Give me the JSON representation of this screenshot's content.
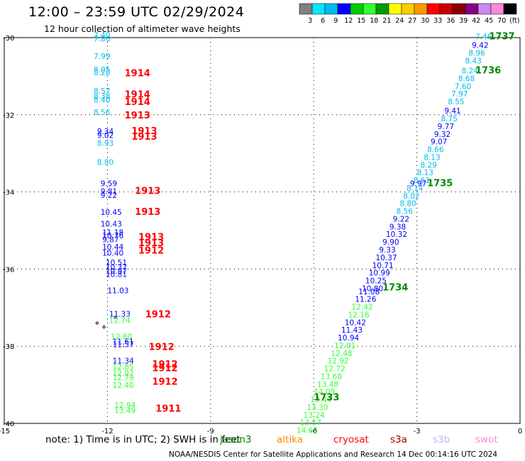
{
  "title": "12:00 – 23:59 UTC 02/29/2024",
  "subtitle": "12 hour collection of altimeter wave heights",
  "note": "note:  1) Time is in UTC; 2) SWH is in feet",
  "credit": "NOAA/NESDIS Center for Satellite Applications and Research    14 Dec 00:14:16 UTC 2024",
  "satellites": [
    {
      "name": "jason3",
      "color": "#008800"
    },
    {
      "name": "altika",
      "color": "#ff8800"
    },
    {
      "name": "cryosat",
      "color": "#ff0000"
    },
    {
      "name": "s3a",
      "color": "#aa0000"
    },
    {
      "name": "s3b",
      "color": "#c0b0ff"
    },
    {
      "name": "swot",
      "color": "#ff88dd"
    }
  ],
  "colorbar": {
    "labels": [
      "3",
      "6",
      "9",
      "12",
      "15",
      "18",
      "21",
      "24",
      "27",
      "30",
      "33",
      "36",
      "39",
      "42",
      "45",
      "70",
      "(ft)"
    ],
    "colors": [
      "#808080",
      "#00e8ff",
      "#00bbee",
      "#0000ff",
      "#00cc00",
      "#33ff33",
      "#009900",
      "#ffff00",
      "#ffcc00",
      "#ff9900",
      "#ff0000",
      "#cc0000",
      "#880000",
      "#880088",
      "#cc88ee",
      "#ff88dd",
      "#000000"
    ]
  },
  "chart_data": {
    "type": "scatter",
    "xlim": [
      -15,
      0
    ],
    "ylim": [
      -40,
      -30
    ],
    "x_ticks": [
      -15,
      -12,
      -9,
      -6,
      -3,
      0
    ],
    "y_ticks": [
      -30,
      -32,
      -34,
      -36,
      -38,
      -40
    ],
    "x_tick_labels": [
      "-15",
      "-12",
      "-9",
      "-6",
      "-3",
      "0"
    ],
    "y_tick_labels": [
      "-30",
      "-32",
      "-34",
      "-36",
      "-38",
      "-40"
    ],
    "grid": true,
    "coastline": [
      {
        "x": -11.77,
        "y": -37.25,
        "type": "point"
      },
      {
        "x": -12.3,
        "y": -37.4,
        "type": "point"
      },
      {
        "x": -12.1,
        "y": -37.5,
        "type": "point"
      }
    ],
    "points": [
      {
        "x": -12.4,
        "y": -30.0,
        "v": "7.40",
        "c": "#00bbee"
      },
      {
        "x": -12.4,
        "y": -30.1,
        "v": "7.86",
        "c": "#00bbee"
      },
      {
        "x": -12.4,
        "y": -30.55,
        "v": "7.99",
        "c": "#00bbee"
      },
      {
        "x": -12.4,
        "y": -30.9,
        "v": "8.05",
        "c": "#00bbee"
      },
      {
        "x": -12.4,
        "y": -30.97,
        "v": "8.28",
        "c": "#00bbee"
      },
      {
        "x": -12.4,
        "y": -31.45,
        "v": "8.57",
        "c": "#00bbee"
      },
      {
        "x": -12.4,
        "y": -31.58,
        "v": "8.38",
        "c": "#00bbee"
      },
      {
        "x": -12.4,
        "y": -31.68,
        "v": "8.40",
        "c": "#00bbee"
      },
      {
        "x": -12.4,
        "y": -32.0,
        "v": "8.56",
        "c": "#00bbee"
      },
      {
        "x": -12.3,
        "y": -32.5,
        "v": "9.34",
        "c": "#0000ff"
      },
      {
        "x": -12.3,
        "y": -32.6,
        "v": "9.02",
        "c": "#0000ff"
      },
      {
        "x": -12.3,
        "y": -32.8,
        "v": "8.93",
        "c": "#00bbee"
      },
      {
        "x": -12.3,
        "y": -33.3,
        "v": "8.80",
        "c": "#00bbee"
      },
      {
        "x": -12.2,
        "y": -33.85,
        "v": "9.59",
        "c": "#0000ff"
      },
      {
        "x": -12.2,
        "y": -34.05,
        "v": "9.81",
        "c": "#0000ff"
      },
      {
        "x": -12.2,
        "y": -34.15,
        "v": "9.22",
        "c": "#0000ff"
      },
      {
        "x": -12.2,
        "y": -34.6,
        "v": "10.45",
        "c": "#0000ff"
      },
      {
        "x": -12.2,
        "y": -34.9,
        "v": "10.43",
        "c": "#0000ff"
      },
      {
        "x": -12.15,
        "y": -35.12,
        "v": "11.18",
        "c": "#0000ff"
      },
      {
        "x": -12.15,
        "y": -35.2,
        "v": "10.76",
        "c": "#0000ff"
      },
      {
        "x": -12.15,
        "y": -35.3,
        "v": "9.87",
        "c": "#0000ff"
      },
      {
        "x": -12.15,
        "y": -35.5,
        "v": "10.44",
        "c": "#0000ff"
      },
      {
        "x": -12.15,
        "y": -35.65,
        "v": "10.40",
        "c": "#0000ff"
      },
      {
        "x": -12.05,
        "y": -35.9,
        "v": "10.51",
        "c": "#0000ff"
      },
      {
        "x": -12.05,
        "y": -36.02,
        "v": "10.37",
        "c": "#0000ff"
      },
      {
        "x": -12.05,
        "y": -36.12,
        "v": "10.97",
        "c": "#0000ff"
      },
      {
        "x": -12.05,
        "y": -36.2,
        "v": "10.81",
        "c": "#0000ff"
      },
      {
        "x": -12.0,
        "y": -36.63,
        "v": "11.03",
        "c": "#0000ff"
      },
      {
        "x": -11.95,
        "y": -37.23,
        "v": "11.33",
        "c": "#0000ff"
      },
      {
        "x": -11.95,
        "y": -37.4,
        "v": "12.74",
        "c": "#33ff33"
      },
      {
        "x": -11.9,
        "y": -37.82,
        "v": "12.80",
        "c": "#33ff33"
      },
      {
        "x": -11.85,
        "y": -37.95,
        "v": "11.61",
        "c": "#0000ff"
      },
      {
        "x": -11.85,
        "y": -38.02,
        "v": "11.57",
        "c": "#0000ff"
      },
      {
        "x": -11.85,
        "y": -38.45,
        "v": "11.34",
        "c": "#0000ff"
      },
      {
        "x": -11.85,
        "y": -38.6,
        "v": "12.85",
        "c": "#33ff33"
      },
      {
        "x": -11.85,
        "y": -38.77,
        "v": "12.97",
        "c": "#33ff33"
      },
      {
        "x": -11.85,
        "y": -38.88,
        "v": "12.79",
        "c": "#33ff33"
      },
      {
        "x": -11.85,
        "y": -39.08,
        "v": "12.40",
        "c": "#33ff33"
      },
      {
        "x": -11.8,
        "y": -39.6,
        "v": "12.94",
        "c": "#33ff33"
      },
      {
        "x": -11.8,
        "y": -39.73,
        "v": "13.49",
        "c": "#33ff33"
      },
      {
        "x": -1.3,
        "y": -30.05,
        "v": "7.46",
        "c": "#00bbee"
      },
      {
        "x": -1.4,
        "y": -30.27,
        "v": "9.42",
        "c": "#0000ff"
      },
      {
        "x": -1.5,
        "y": -30.47,
        "v": "8.96",
        "c": "#00bbee"
      },
      {
        "x": -1.6,
        "y": -30.67,
        "v": "8.43",
        "c": "#00bbee"
      },
      {
        "x": -1.7,
        "y": -30.93,
        "v": "8.24",
        "c": "#00bbee"
      },
      {
        "x": -1.8,
        "y": -31.13,
        "v": "8.68",
        "c": "#00bbee"
      },
      {
        "x": -1.9,
        "y": -31.33,
        "v": "7.60",
        "c": "#00bbee"
      },
      {
        "x": -2.0,
        "y": -31.53,
        "v": "7.97",
        "c": "#00bbee"
      },
      {
        "x": -2.1,
        "y": -31.73,
        "v": "8.55",
        "c": "#00bbee"
      },
      {
        "x": -2.2,
        "y": -31.97,
        "v": "9.41",
        "c": "#0000ff"
      },
      {
        "x": -2.3,
        "y": -32.17,
        "v": "8.75",
        "c": "#00bbee"
      },
      {
        "x": -2.4,
        "y": -32.37,
        "v": "9.77",
        "c": "#0000ff"
      },
      {
        "x": -2.5,
        "y": -32.57,
        "v": "9.32",
        "c": "#0000ff"
      },
      {
        "x": -2.6,
        "y": -32.77,
        "v": "9.07",
        "c": "#0000ff"
      },
      {
        "x": -2.7,
        "y": -32.97,
        "v": "8.66",
        "c": "#00bbee"
      },
      {
        "x": -2.8,
        "y": -33.17,
        "v": "8.13",
        "c": "#00bbee"
      },
      {
        "x": -2.9,
        "y": -33.37,
        "v": "8.29",
        "c": "#00bbee"
      },
      {
        "x": -3.0,
        "y": -33.57,
        "v": "8.13",
        "c": "#00bbee"
      },
      {
        "x": -3.1,
        "y": -33.77,
        "v": "8.61",
        "c": "#00bbee"
      },
      {
        "x": -3.2,
        "y": -33.85,
        "v": "9.97",
        "c": "#0000ff"
      },
      {
        "x": -3.3,
        "y": -33.97,
        "v": "8.14",
        "c": "#00bbee"
      },
      {
        "x": -3.4,
        "y": -34.17,
        "v": "8.02",
        "c": "#00bbee"
      },
      {
        "x": -3.5,
        "y": -34.37,
        "v": "8.80",
        "c": "#00bbee"
      },
      {
        "x": -3.6,
        "y": -34.57,
        "v": "8.56",
        "c": "#00bbee"
      },
      {
        "x": -3.7,
        "y": -34.77,
        "v": "9.22",
        "c": "#0000ff"
      },
      {
        "x": -3.8,
        "y": -34.97,
        "v": "9.38",
        "c": "#0000ff"
      },
      {
        "x": -3.9,
        "y": -35.17,
        "v": "10.32",
        "c": "#0000ff"
      },
      {
        "x": -4.0,
        "y": -35.37,
        "v": "9.90",
        "c": "#0000ff"
      },
      {
        "x": -4.1,
        "y": -35.57,
        "v": "9.33",
        "c": "#0000ff"
      },
      {
        "x": -4.2,
        "y": -35.77,
        "v": "10.37",
        "c": "#0000ff"
      },
      {
        "x": -4.3,
        "y": -35.97,
        "v": "10.71",
        "c": "#0000ff"
      },
      {
        "x": -4.4,
        "y": -36.17,
        "v": "10.99",
        "c": "#0000ff"
      },
      {
        "x": -4.5,
        "y": -36.37,
        "v": "10.25",
        "c": "#0000ff"
      },
      {
        "x": -4.6,
        "y": -36.57,
        "v": "10.80",
        "c": "#0000ff"
      },
      {
        "x": -4.7,
        "y": -36.65,
        "v": "11.08",
        "c": "#0000ff"
      },
      {
        "x": -4.8,
        "y": -36.85,
        "v": "11.26",
        "c": "#0000ff"
      },
      {
        "x": -4.9,
        "y": -37.05,
        "v": "12.42",
        "c": "#33ff33"
      },
      {
        "x": -5.0,
        "y": -37.25,
        "v": "12.16",
        "c": "#33ff33"
      },
      {
        "x": -5.1,
        "y": -37.45,
        "v": "10.42",
        "c": "#0000ff"
      },
      {
        "x": -5.2,
        "y": -37.65,
        "v": "11.43",
        "c": "#0000ff"
      },
      {
        "x": -5.3,
        "y": -37.85,
        "v": "10.94",
        "c": "#0000ff"
      },
      {
        "x": -5.4,
        "y": -38.05,
        "v": "12.01",
        "c": "#33ff33"
      },
      {
        "x": -5.5,
        "y": -38.25,
        "v": "12.48",
        "c": "#33ff33"
      },
      {
        "x": -5.6,
        "y": -38.45,
        "v": "12.92",
        "c": "#33ff33"
      },
      {
        "x": -5.7,
        "y": -38.65,
        "v": "12.72",
        "c": "#33ff33"
      },
      {
        "x": -5.8,
        "y": -38.85,
        "v": "13.68",
        "c": "#33ff33"
      },
      {
        "x": -5.9,
        "y": -39.05,
        "v": "13.48",
        "c": "#33ff33"
      },
      {
        "x": -6.0,
        "y": -39.25,
        "v": "14.09",
        "c": "#33ff33"
      },
      {
        "x": -6.1,
        "y": -39.45,
        "v": "13.44",
        "c": "#33ff33"
      },
      {
        "x": -6.2,
        "y": -39.65,
        "v": "13.30",
        "c": "#33ff33"
      },
      {
        "x": -6.3,
        "y": -39.85,
        "v": "13.24",
        "c": "#33ff33"
      },
      {
        "x": -6.4,
        "y": -40.05,
        "v": "13.57",
        "c": "#33ff33"
      },
      {
        "x": -6.5,
        "y": -40.25,
        "v": "14.65",
        "c": "#33ff33"
      }
    ],
    "time_labels": [
      {
        "x": -11.5,
        "y": -31.0,
        "v": "1914",
        "c": "#ff0000"
      },
      {
        "x": -11.5,
        "y": -31.55,
        "v": "1914",
        "c": "#ff0000"
      },
      {
        "x": -11.5,
        "y": -31.75,
        "v": "1914",
        "c": "#ff0000"
      },
      {
        "x": -11.5,
        "y": -32.1,
        "v": "1913",
        "c": "#ff0000"
      },
      {
        "x": -11.3,
        "y": -32.5,
        "v": "1913",
        "c": "#ff0000"
      },
      {
        "x": -11.3,
        "y": -32.65,
        "v": "1913",
        "c": "#ff0000"
      },
      {
        "x": -11.2,
        "y": -34.05,
        "v": "1913",
        "c": "#ff0000"
      },
      {
        "x": -11.2,
        "y": -34.6,
        "v": "1913",
        "c": "#ff0000"
      },
      {
        "x": -11.1,
        "y": -35.25,
        "v": "1913",
        "c": "#ff0000"
      },
      {
        "x": -11.1,
        "y": -35.4,
        "v": "1913",
        "c": "#ff0000"
      },
      {
        "x": -11.1,
        "y": -35.6,
        "v": "1912",
        "c": "#ff0000"
      },
      {
        "x": -10.9,
        "y": -37.25,
        "v": "1912",
        "c": "#ff0000"
      },
      {
        "x": -10.8,
        "y": -38.1,
        "v": "1912",
        "c": "#ff0000"
      },
      {
        "x": -10.7,
        "y": -38.55,
        "v": "1912",
        "c": "#ff0000"
      },
      {
        "x": -10.7,
        "y": -38.65,
        "v": "1912",
        "c": "#ff0000"
      },
      {
        "x": -10.7,
        "y": -39.0,
        "v": "1912",
        "c": "#ff0000"
      },
      {
        "x": -10.6,
        "y": -39.7,
        "v": "1911",
        "c": "#ff0000"
      },
      {
        "x": -0.9,
        "y": -30.05,
        "v": "1737",
        "c": "#008800"
      },
      {
        "x": -1.3,
        "y": -30.93,
        "v": "1736",
        "c": "#008800"
      },
      {
        "x": -2.7,
        "y": -33.85,
        "v": "1735",
        "c": "#008800"
      },
      {
        "x": -4.0,
        "y": -36.55,
        "v": "1734",
        "c": "#008800"
      },
      {
        "x": -6.0,
        "y": -39.4,
        "v": "1733",
        "c": "#008800"
      }
    ]
  }
}
